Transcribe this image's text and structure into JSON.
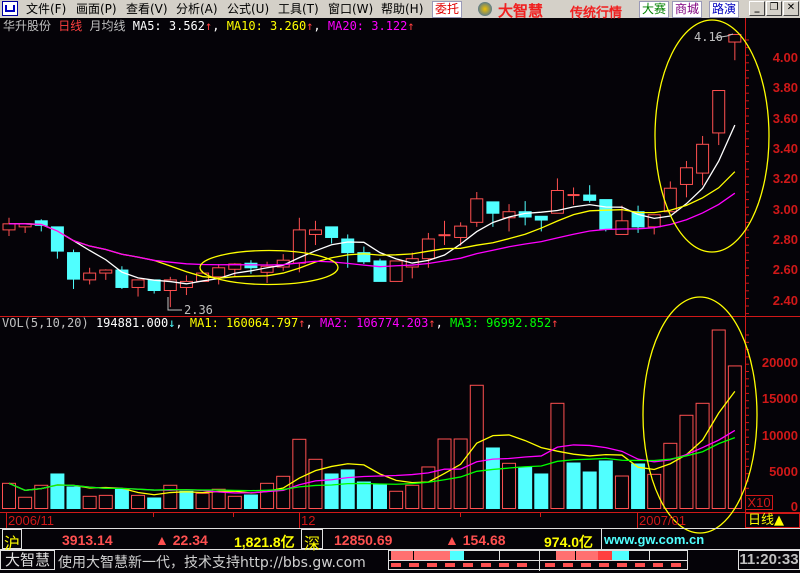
{
  "menubar": {
    "items": [
      "文件(F)",
      "画面(P)",
      "查看(V)",
      "分析(A)",
      "公式(U)",
      "工具(T)",
      "窗口(W)",
      "帮助(H)"
    ],
    "trade_button": "委托",
    "brand": "大智慧",
    "brand_sub": "传统行情",
    "contest": "大赛",
    "mall": "商城",
    "roadshow": "路演",
    "minimize": "_",
    "restore": "❐",
    "close": "✕"
  },
  "header": {
    "stock": "华升股份",
    "period": "日线",
    "mode": "月均线",
    "ma5": "MA5: 3.562",
    "ma10": "MA10: 3.260",
    "ma20": "MA20: 3.122",
    "arrow": "↑"
  },
  "vol_header": {
    "label": "VOL(5,10,20)",
    "value": "194881.000",
    "down": "↓",
    "ma1": "MA1: 160064.797",
    "ma2": "MA2: 106774.203",
    "ma3": "MA3: 96992.852",
    "up": "↑"
  },
  "colors": {
    "up": "#ff5050",
    "down": "#50ffff",
    "ma5": "#ffffff",
    "ma10": "#ffff00",
    "ma20": "#ff00ff",
    "vma3": "#00ff00",
    "axis": "#d01818",
    "annot_ellipse": "#ffff00"
  },
  "chart_data": [
    {
      "type": "candlestick",
      "price_axis": [
        "4.00",
        "3.80",
        "3.60",
        "3.40",
        "3.20",
        "3.00",
        "2.80",
        "2.60",
        "2.40"
      ],
      "ylim": [
        2.4,
        4.0
      ],
      "ohlc": [
        [
          2.87,
          2.95,
          2.83,
          2.91
        ],
        [
          2.89,
          2.91,
          2.85,
          2.91
        ],
        [
          2.93,
          2.94,
          2.86,
          2.9
        ],
        [
          2.89,
          2.89,
          2.68,
          2.73
        ],
        [
          2.72,
          2.74,
          2.48,
          2.545
        ],
        [
          2.54,
          2.62,
          2.51,
          2.585
        ],
        [
          2.585,
          2.61,
          2.54,
          2.605
        ],
        [
          2.605,
          2.63,
          2.48,
          2.49
        ],
        [
          2.49,
          2.54,
          2.43,
          2.54
        ],
        [
          2.54,
          2.54,
          2.45,
          2.47
        ],
        [
          2.47,
          2.56,
          2.36,
          2.54
        ],
        [
          2.49,
          2.57,
          2.44,
          2.53
        ],
        [
          2.53,
          2.6,
          2.53,
          2.585
        ],
        [
          2.56,
          2.645,
          2.51,
          2.62
        ],
        [
          2.61,
          2.65,
          2.56,
          2.645
        ],
        [
          2.65,
          2.67,
          2.58,
          2.62
        ],
        [
          2.59,
          2.66,
          2.52,
          2.63
        ],
        [
          2.625,
          2.71,
          2.6,
          2.67
        ],
        [
          2.65,
          2.95,
          2.59,
          2.87
        ],
        [
          2.84,
          2.93,
          2.77,
          2.87
        ],
        [
          2.89,
          2.89,
          2.78,
          2.82
        ],
        [
          2.81,
          2.84,
          2.62,
          2.72
        ],
        [
          2.72,
          2.76,
          2.645,
          2.66
        ],
        [
          2.665,
          2.68,
          2.53,
          2.53
        ],
        [
          2.53,
          2.665,
          2.53,
          2.665
        ],
        [
          2.625,
          2.72,
          2.55,
          2.68
        ],
        [
          2.68,
          2.85,
          2.62,
          2.81
        ],
        [
          2.835,
          2.93,
          2.77,
          2.835
        ],
        [
          2.82,
          2.92,
          2.765,
          2.895
        ],
        [
          2.92,
          3.12,
          2.89,
          3.075
        ],
        [
          3.055,
          3.055,
          2.89,
          2.98
        ],
        [
          2.95,
          3.04,
          2.86,
          2.99
        ],
        [
          2.99,
          3.06,
          2.9,
          2.955
        ],
        [
          2.96,
          2.96,
          2.86,
          2.935
        ],
        [
          2.98,
          3.21,
          2.98,
          3.13
        ],
        [
          3.1,
          3.15,
          3.035,
          3.1
        ],
        [
          3.1,
          3.165,
          3.05,
          3.065
        ],
        [
          3.07,
          3.07,
          2.86,
          2.875
        ],
        [
          2.84,
          3.03,
          2.84,
          2.93
        ],
        [
          2.99,
          3.03,
          2.85,
          2.89
        ],
        [
          2.89,
          2.97,
          2.84,
          2.97
        ],
        [
          2.99,
          3.19,
          2.99,
          3.145
        ],
        [
          3.17,
          3.325,
          3.085,
          3.28
        ],
        [
          3.245,
          3.49,
          3.165,
          3.435
        ],
        [
          3.51,
          3.79,
          3.43,
          3.79
        ],
        [
          4.11,
          4.16,
          3.99,
          4.16
        ]
      ],
      "ma_periods": [
        5,
        10,
        20
      ],
      "high_label": "4.16",
      "low_label": "2.36"
    },
    {
      "type": "bar",
      "vol_axis": [
        "20000",
        "15000",
        "10000",
        "5000",
        "0"
      ],
      "unit": "X10",
      "ylim": [
        0,
        25000
      ],
      "values": [
        3450,
        1540,
        3180,
        4730,
        2950,
        1670,
        1800,
        2710,
        1800,
        1440,
        3180,
        2360,
        2080,
        2640,
        1670,
        1850,
        3450,
        4410,
        9480,
        6740,
        4730,
        5280,
        3630,
        3260,
        2360,
        3180,
        5690,
        9520,
        9520,
        16880,
        8290,
        6190,
        5640,
        4730,
        14410,
        6230,
        5000,
        6510,
        4450,
        6100,
        4680,
        8930,
        12770,
        14410,
        24600,
        19530
      ],
      "up": [
        1,
        1,
        1,
        0,
        0,
        1,
        1,
        0,
        1,
        0,
        1,
        0,
        1,
        1,
        1,
        0,
        1,
        1,
        1,
        1,
        0,
        0,
        0,
        0,
        1,
        1,
        1,
        1,
        1,
        1,
        0,
        1,
        0,
        0,
        1,
        0,
        0,
        0,
        1,
        0,
        1,
        1,
        1,
        1,
        1,
        1
      ],
      "ma_periods": [
        5,
        10,
        20
      ]
    }
  ],
  "date_axis": {
    "d1": "2006/11",
    "d2": "12",
    "d3": "2007/01",
    "period_button": "日线▲"
  },
  "status": {
    "sh": "沪",
    "sh_index": "3913.14",
    "sh_change": "▲ 22.34",
    "sh_amount": "1,821.8亿",
    "sz": "深",
    "sz_index": "12850.69",
    "sz_change": "▲ 154.68",
    "sz_amount": "974.0亿",
    "site": "www.gw.com.cn",
    "app": "大智慧",
    "ticker": "使用大智慧新一代，技术支持http://bbs.gw.com",
    "time": "11:20:33"
  }
}
